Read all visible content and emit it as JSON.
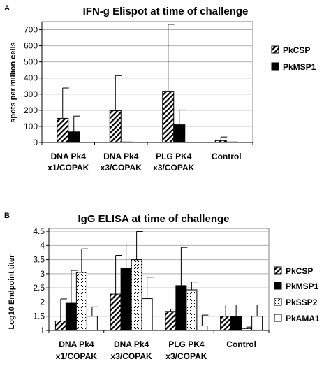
{
  "patterns": {
    "stripe": "#ffffff",
    "stripe_line": "#000000",
    "solid": "#000000",
    "dots_bg": "#ffffff",
    "dots_fg": "#000000",
    "empty": "#ffffff"
  },
  "chart_data": [
    {
      "panel_label": "A",
      "type": "bar",
      "title": "IFN-g Elispot at time of challenge",
      "ylabel": "spots per million  cells",
      "xlabel": "",
      "categories": [
        [
          "DNA Pk4",
          "x1/COPAK"
        ],
        [
          "DNA Pk4",
          "x3/COPAK"
        ],
        [
          "PLG PK4",
          "x3/COPAK"
        ],
        [
          "Control"
        ]
      ],
      "ylim": [
        0,
        750
      ],
      "yticks": [
        "0",
        "100",
        "200",
        "300",
        "400",
        "500",
        "600",
        "700"
      ],
      "ytick_values": [
        0,
        100,
        200,
        300,
        400,
        500,
        600,
        700
      ],
      "grid": true,
      "legend_position": "right",
      "series": [
        {
          "name": "PkCSP",
          "pattern": "stripe",
          "values": [
            150,
            197,
            318,
            12
          ],
          "error": [
            188,
            218,
            415,
            22
          ]
        },
        {
          "name": "PkMSP1",
          "pattern": "solid",
          "values": [
            66,
            3,
            110,
            3
          ],
          "error": [
            98,
            0,
            92,
            0
          ]
        }
      ]
    },
    {
      "panel_label": "B",
      "type": "bar",
      "title": "IgG ELISA at time of challenge",
      "ylabel": "Log10 Endpoint titer",
      "xlabel": "",
      "categories": [
        [
          "DNA Pk4",
          "x1/COPAK"
        ],
        [
          "DNA Pk4",
          "x3/COPAK"
        ],
        [
          "PLG PK4",
          "x3/COPAK"
        ],
        [
          "Control"
        ]
      ],
      "ylim": [
        1,
        4.6
      ],
      "yticks": [
        "1",
        "1.5",
        "2",
        "2.5",
        "3",
        "3.5",
        "4",
        "4.5"
      ],
      "ytick_values": [
        1,
        1.5,
        2,
        2.5,
        3,
        3.5,
        4,
        4.5
      ],
      "grid": true,
      "legend_position": "right",
      "series": [
        {
          "name": "PkCSP",
          "pattern": "stripe",
          "values": [
            1.33,
            2.28,
            1.67,
            1.5
          ],
          "error": [
            0.78,
            1.37,
            0.08,
            0.4
          ]
        },
        {
          "name": "PkMSP1",
          "pattern": "solid",
          "values": [
            1.96,
            3.2,
            2.58,
            1.5
          ],
          "error": [
            1.16,
            0.92,
            1.35,
            0.4
          ]
        },
        {
          "name": "PkSSP2",
          "pattern": "dots",
          "values": [
            3.05,
            3.5,
            2.43,
            1.07
          ],
          "error": [
            0.83,
            0.99,
            0.28,
            0.05
          ]
        },
        {
          "name": "PkAMA1",
          "pattern": "empty",
          "values": [
            1.5,
            2.12,
            1.16,
            1.5
          ],
          "error": [
            0.33,
            0.76,
            0.38,
            0.4
          ]
        }
      ]
    }
  ]
}
